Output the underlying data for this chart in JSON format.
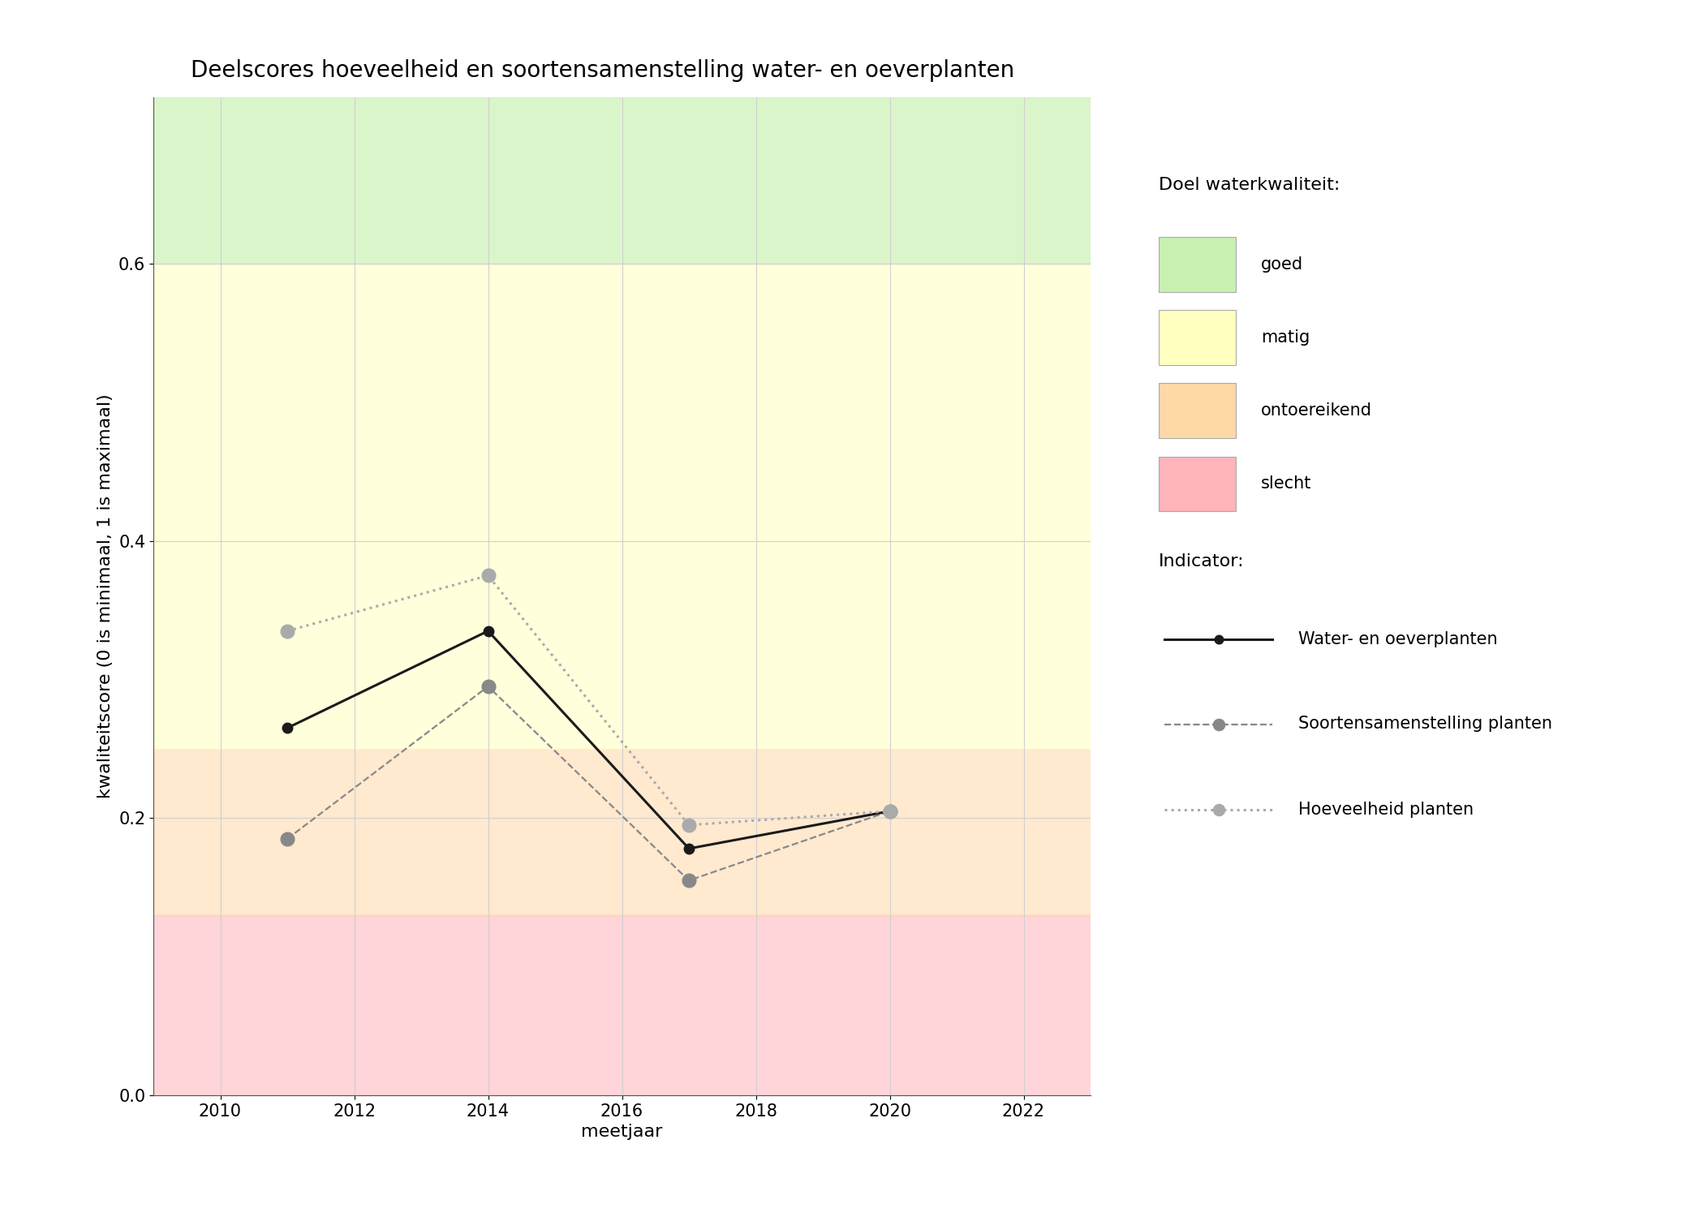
{
  "title": "Deelscores hoeveelheid en soortensamenstelling water- en oeverplanten",
  "xlabel": "meetjaar",
  "ylabel": "kwaliteitscore (0 is minimaal, 1 is maximaal)",
  "xlim": [
    2009,
    2023
  ],
  "ylim": [
    0,
    0.72
  ],
  "xticks": [
    2010,
    2012,
    2014,
    2016,
    2018,
    2020,
    2022
  ],
  "yticks": [
    0.0,
    0.2,
    0.4,
    0.6
  ],
  "background_bands": [
    {
      "ymin": 0.0,
      "ymax": 0.13,
      "color": "#ffb3ba",
      "alpha": 0.55,
      "label": "slecht"
    },
    {
      "ymin": 0.13,
      "ymax": 0.25,
      "color": "#ffd8a8",
      "alpha": 0.55,
      "label": "ontoereikend"
    },
    {
      "ymin": 0.25,
      "ymax": 0.6,
      "color": "#ffffc0",
      "alpha": 0.55,
      "label": "matig"
    },
    {
      "ymin": 0.6,
      "ymax": 0.72,
      "color": "#c8f0b0",
      "alpha": 0.65,
      "label": "goed"
    }
  ],
  "series": [
    {
      "name": "Water- en oeverplanten",
      "years": [
        2011,
        2014,
        2017,
        2020
      ],
      "values": [
        0.265,
        0.335,
        0.178,
        0.205
      ],
      "color": "#1a1a1a",
      "linestyle": "solid",
      "linewidth": 2.2,
      "markersize": 9,
      "marker": "o",
      "markerfacecolor": "#1a1a1a",
      "zorder": 5
    },
    {
      "name": "Soortensamenstelling planten",
      "years": [
        2011,
        2014,
        2017,
        2020
      ],
      "values": [
        0.185,
        0.295,
        0.155,
        0.205
      ],
      "color": "#888888",
      "linestyle": "dashed",
      "linewidth": 1.6,
      "markersize": 12,
      "marker": "o",
      "markerfacecolor": "#888888",
      "zorder": 4
    },
    {
      "name": "Hoeveelheid planten",
      "years": [
        2011,
        2014,
        2017,
        2020
      ],
      "values": [
        0.335,
        0.375,
        0.195,
        0.205
      ],
      "color": "#aaaaaa",
      "linestyle": "dotted",
      "linewidth": 2.2,
      "markersize": 12,
      "marker": "o",
      "markerfacecolor": "#aaaaaa",
      "zorder": 6
    }
  ],
  "legend_quality_title": "Doel waterkwaliteit:",
  "legend_indicator_title": "Indicator:",
  "quality_labels": [
    "goed",
    "matig",
    "ontoereikend",
    "slecht"
  ],
  "quality_colors": [
    "#c8f0b0",
    "#ffffc0",
    "#ffd8a8",
    "#ffb3ba"
  ],
  "background_color": "#ffffff",
  "grid_color": "#d0d0d0",
  "title_fontsize": 20,
  "axis_label_fontsize": 16,
  "tick_fontsize": 15,
  "legend_fontsize": 15,
  "legend_title_fontsize": 16
}
